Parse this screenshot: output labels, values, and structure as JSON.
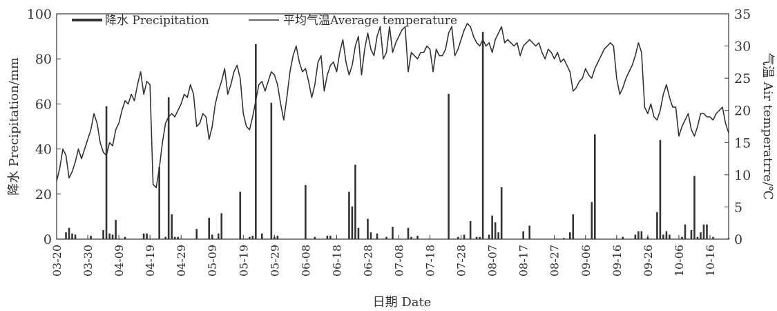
{
  "chart_data": {
    "type": "bar+line",
    "legend": [
      {
        "label": "降水 Precipitation",
        "type": "bar",
        "color": "#333333"
      },
      {
        "label": "平均气温Average temperature",
        "type": "line",
        "color": "#333333"
      }
    ],
    "xlabel": "日期 Date",
    "ylabel_left": "降水 Precipitation/mm",
    "ylabel_right": "气温 Air temperatrre/℃",
    "ylim_left": [
      0,
      100
    ],
    "ylim_right": [
      0,
      35
    ],
    "yticks_left": [
      "0",
      "20",
      "40",
      "60",
      "80",
      "100"
    ],
    "yticks_right": [
      "0",
      "5",
      "10",
      "15",
      "20",
      "25",
      "30",
      "35"
    ],
    "x_tick_labels": [
      "03-20",
      "03-30",
      "04-09",
      "04-19",
      "04-29",
      "05-09",
      "05-19",
      "05-29",
      "06-08",
      "06-18",
      "06-28",
      "07-08",
      "07-18",
      "07-28",
      "08-07",
      "08-17",
      "08-27",
      "09-06",
      "09-16",
      "09-26",
      "10-06",
      "10-16"
    ],
    "day_count": 217,
    "tick_step_days": 10,
    "precipitation": [
      [
        3,
        3
      ],
      [
        4,
        5
      ],
      [
        5,
        2.5
      ],
      [
        6,
        2
      ],
      [
        11,
        1.5
      ],
      [
        15,
        4
      ],
      [
        16,
        59
      ],
      [
        17,
        2.5
      ],
      [
        18,
        2
      ],
      [
        19,
        8.5
      ],
      [
        22,
        1
      ],
      [
        28,
        2.5
      ],
      [
        29,
        2.5
      ],
      [
        33,
        32
      ],
      [
        35,
        1
      ],
      [
        36,
        63
      ],
      [
        37,
        11
      ],
      [
        38,
        1
      ],
      [
        39,
        1
      ],
      [
        45,
        4.5
      ],
      [
        49,
        9.5
      ],
      [
        50,
        2
      ],
      [
        52,
        2.5
      ],
      [
        53,
        11.5
      ],
      [
        59,
        21
      ],
      [
        62,
        1
      ],
      [
        63,
        1.5
      ],
      [
        64,
        86.5
      ],
      [
        66,
        2.5
      ],
      [
        69,
        60.5
      ],
      [
        70,
        1
      ],
      [
        71,
        1.5
      ],
      [
        80,
        24
      ],
      [
        83,
        1
      ],
      [
        87,
        1.5
      ],
      [
        88,
        1.5
      ],
      [
        94,
        21
      ],
      [
        95,
        14.5
      ],
      [
        96,
        33
      ],
      [
        97,
        5
      ],
      [
        100,
        9
      ],
      [
        101,
        3
      ],
      [
        103,
        2.5
      ],
      [
        106,
        1
      ],
      [
        108,
        5.5
      ],
      [
        113,
        5
      ],
      [
        114,
        1
      ],
      [
        116,
        1.5
      ],
      [
        126,
        64.5
      ],
      [
        129,
        1
      ],
      [
        131,
        2
      ],
      [
        133,
        8
      ],
      [
        135,
        1
      ],
      [
        136,
        1
      ],
      [
        137,
        92
      ],
      [
        139,
        2
      ],
      [
        140,
        10.5
      ],
      [
        141,
        7.5
      ],
      [
        142,
        3
      ],
      [
        143,
        23
      ],
      [
        150,
        3.5
      ],
      [
        152,
        6
      ],
      [
        163,
        0.5
      ],
      [
        165,
        3
      ],
      [
        166,
        11
      ],
      [
        172,
        16.5
      ],
      [
        173,
        46.5
      ],
      [
        182,
        1
      ],
      [
        186,
        2
      ],
      [
        187,
        3.5
      ],
      [
        188,
        3.5
      ],
      [
        190,
        1
      ],
      [
        193,
        12
      ],
      [
        194,
        44
      ],
      [
        195,
        2
      ],
      [
        196,
        3.5
      ],
      [
        197,
        2
      ],
      [
        201,
        1
      ],
      [
        202,
        6.5
      ],
      [
        204,
        4
      ],
      [
        205,
        28
      ],
      [
        206,
        1
      ],
      [
        207,
        3
      ],
      [
        208,
        6.5
      ],
      [
        209,
        6.5
      ],
      [
        211,
        1
      ],
      [
        216,
        0.5
      ]
    ],
    "temperature": [
      [
        0,
        9
      ],
      [
        1,
        11
      ],
      [
        2,
        14
      ],
      [
        3,
        13
      ],
      [
        4,
        9.5
      ],
      [
        5,
        10.5
      ],
      [
        6,
        12
      ],
      [
        7,
        14
      ],
      [
        8,
        12.5
      ],
      [
        9,
        14
      ],
      [
        10,
        15.5
      ],
      [
        11,
        17
      ],
      [
        12,
        19.5
      ],
      [
        13,
        18
      ],
      [
        14,
        15
      ],
      [
        15,
        13.5
      ],
      [
        16,
        13
      ],
      [
        17,
        15
      ],
      [
        18,
        14.5
      ],
      [
        19,
        17
      ],
      [
        20,
        18
      ],
      [
        21,
        20
      ],
      [
        22,
        21.5
      ],
      [
        23,
        21
      ],
      [
        24,
        22.5
      ],
      [
        25,
        21.5
      ],
      [
        26,
        24
      ],
      [
        27,
        26
      ],
      [
        28,
        22.5
      ],
      [
        29,
        24.5
      ],
      [
        30,
        24
      ],
      [
        31,
        8.5
      ],
      [
        32,
        8
      ],
      [
        33,
        11
      ],
      [
        34,
        15
      ],
      [
        35,
        18
      ],
      [
        36,
        19
      ],
      [
        37,
        19.5
      ],
      [
        38,
        19
      ],
      [
        39,
        20
      ],
      [
        40,
        21
      ],
      [
        41,
        22.5
      ],
      [
        42,
        22
      ],
      [
        43,
        24
      ],
      [
        44,
        22.5
      ],
      [
        45,
        17.5
      ],
      [
        46,
        18
      ],
      [
        47,
        19.5
      ],
      [
        48,
        19
      ],
      [
        49,
        15.5
      ],
      [
        50,
        17.5
      ],
      [
        51,
        21
      ],
      [
        52,
        23
      ],
      [
        53,
        24.5
      ],
      [
        54,
        26.5
      ],
      [
        55,
        22.5
      ],
      [
        56,
        24
      ],
      [
        57,
        26
      ],
      [
        58,
        27
      ],
      [
        59,
        25
      ],
      [
        60,
        19.5
      ],
      [
        61,
        17.5
      ],
      [
        62,
        17
      ],
      [
        63,
        19
      ],
      [
        64,
        21.5
      ],
      [
        65,
        24
      ],
      [
        66,
        24.5
      ],
      [
        67,
        23
      ],
      [
        68,
        24.5
      ],
      [
        69,
        26
      ],
      [
        70,
        25.5
      ],
      [
        71,
        24
      ],
      [
        72,
        21
      ],
      [
        73,
        18.5
      ],
      [
        74,
        22
      ],
      [
        75,
        26
      ],
      [
        76,
        28.5
      ],
      [
        77,
        30
      ],
      [
        78,
        27.5
      ],
      [
        79,
        26
      ],
      [
        80,
        26.5
      ],
      [
        81,
        24.5
      ],
      [
        82,
        22
      ],
      [
        83,
        24
      ],
      [
        84,
        27.5
      ],
      [
        85,
        28.5
      ],
      [
        86,
        23
      ],
      [
        87,
        25.5
      ],
      [
        88,
        27
      ],
      [
        89,
        27.5
      ],
      [
        90,
        26
      ],
      [
        91,
        29
      ],
      [
        92,
        31
      ],
      [
        93,
        27.5
      ],
      [
        94,
        25.5
      ],
      [
        95,
        27
      ],
      [
        96,
        30
      ],
      [
        97,
        31.5
      ],
      [
        98,
        25.5
      ],
      [
        99,
        29.5
      ],
      [
        100,
        32
      ],
      [
        101,
        29.5
      ],
      [
        102,
        28.5
      ],
      [
        103,
        31.5
      ],
      [
        104,
        33
      ],
      [
        105,
        28
      ],
      [
        106,
        29
      ],
      [
        107,
        33
      ],
      [
        108,
        29
      ],
      [
        109,
        30.5
      ],
      [
        110,
        31.5
      ],
      [
        111,
        32.5
      ],
      [
        112,
        33
      ],
      [
        113,
        26
      ],
      [
        114,
        29
      ],
      [
        115,
        28.5
      ],
      [
        116,
        28
      ],
      [
        117,
        29
      ],
      [
        118,
        29
      ],
      [
        119,
        30
      ],
      [
        120,
        29.5
      ],
      [
        121,
        26
      ],
      [
        122,
        29.5
      ],
      [
        123,
        28.5
      ],
      [
        124,
        28.5
      ],
      [
        125,
        29.5
      ],
      [
        126,
        32
      ],
      [
        127,
        33
      ],
      [
        128,
        28.5
      ],
      [
        129,
        29.5
      ],
      [
        130,
        31
      ],
      [
        131,
        32.5
      ],
      [
        132,
        33.5
      ],
      [
        133,
        33
      ],
      [
        134,
        31.5
      ],
      [
        135,
        30.5
      ],
      [
        136,
        30
      ],
      [
        137,
        31
      ],
      [
        138,
        30
      ],
      [
        139,
        30.5
      ],
      [
        140,
        29
      ],
      [
        141,
        31
      ],
      [
        142,
        32
      ],
      [
        143,
        33
      ],
      [
        144,
        30.5
      ],
      [
        145,
        31
      ],
      [
        146,
        30.5
      ],
      [
        147,
        30
      ],
      [
        148,
        30.5
      ],
      [
        149,
        28.5
      ],
      [
        150,
        30
      ],
      [
        151,
        30.5
      ],
      [
        152,
        31
      ],
      [
        153,
        30.5
      ],
      [
        154,
        30
      ],
      [
        155,
        30.5
      ],
      [
        156,
        29
      ],
      [
        157,
        28
      ],
      [
        158,
        29.5
      ],
      [
        159,
        29
      ],
      [
        160,
        28
      ],
      [
        161,
        29
      ],
      [
        162,
        27.5
      ],
      [
        163,
        28
      ],
      [
        164,
        27
      ],
      [
        165,
        26
      ],
      [
        166,
        23
      ],
      [
        167,
        23.5
      ],
      [
        168,
        24.5
      ],
      [
        169,
        25
      ],
      [
        170,
        26.5
      ],
      [
        171,
        25.5
      ],
      [
        172,
        25
      ],
      [
        173,
        26.5
      ],
      [
        174,
        27.5
      ],
      [
        175,
        28.5
      ],
      [
        176,
        29.5
      ],
      [
        177,
        30
      ],
      [
        178,
        30.5
      ],
      [
        179,
        30
      ],
      [
        180,
        25
      ],
      [
        181,
        22.5
      ],
      [
        182,
        23.5
      ],
      [
        183,
        25
      ],
      [
        184,
        26
      ],
      [
        185,
        27
      ],
      [
        186,
        28.5
      ],
      [
        187,
        30.5
      ],
      [
        188,
        29
      ],
      [
        189,
        20.5
      ],
      [
        190,
        19.5
      ],
      [
        191,
        21
      ],
      [
        192,
        19
      ],
      [
        193,
        18.5
      ],
      [
        194,
        20
      ],
      [
        195,
        22.5
      ],
      [
        196,
        24
      ],
      [
        197,
        22
      ],
      [
        198,
        20.5
      ],
      [
        199,
        20.5
      ],
      [
        200,
        16
      ],
      [
        201,
        17.5
      ],
      [
        202,
        18.5
      ],
      [
        203,
        19.5
      ],
      [
        204,
        17
      ],
      [
        205,
        16
      ],
      [
        206,
        17.5
      ],
      [
        207,
        19.5
      ],
      [
        208,
        19.5
      ],
      [
        209,
        19
      ],
      [
        210,
        19
      ],
      [
        211,
        18.5
      ],
      [
        212,
        19.5
      ],
      [
        213,
        20
      ],
      [
        214,
        20.5
      ],
      [
        215,
        18
      ],
      [
        216,
        16.5
      ]
    ],
    "grid": false,
    "legend_position": "top-left"
  }
}
